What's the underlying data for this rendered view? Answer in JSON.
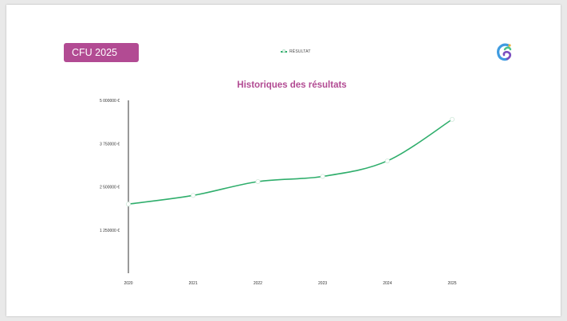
{
  "header": {
    "badge_label": "CFU 2025",
    "logo_icon": "swirl-logo-icon"
  },
  "colors": {
    "accent": "#b24b93",
    "series_line": "#2fae6c"
  },
  "chart_data": {
    "type": "line",
    "title": "Historiques des résultats",
    "xlabel": "",
    "ylabel": "",
    "categories": [
      "2020",
      "2021",
      "2022",
      "2023",
      "2024",
      "2025"
    ],
    "y_ticks": [
      1250000,
      2500000,
      3750000,
      5000000
    ],
    "y_tick_labels": [
      "1 250000 €",
      "2 500000 €",
      "3 750000 €",
      "5 000000 €"
    ],
    "ylim": [
      0,
      5000000
    ],
    "legend_position": "top-center",
    "grid": false,
    "series": [
      {
        "name": "RÉSULTAT",
        "values": [
          2000000,
          2250000,
          2650000,
          2800000,
          3250000,
          4450000
        ]
      }
    ]
  }
}
